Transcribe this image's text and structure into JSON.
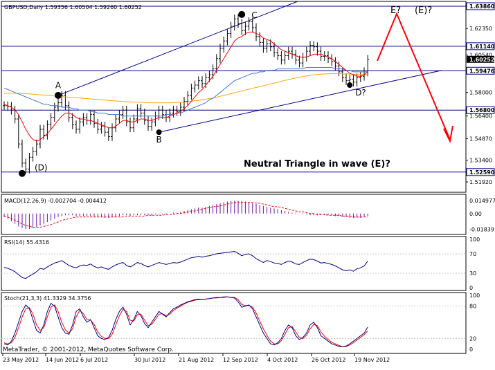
{
  "window": {
    "header": "GBPUSD,Daily  1.59356 1.60504 1.59260 1.60252",
    "footer": "MetaTrader, © 2001-2012, MetaQuotes Software Corp."
  },
  "colors": {
    "candle": "#000000",
    "ma_fast": "#ff0000",
    "ma_medium": "#3c78d8",
    "ma_slow": "#ffa500",
    "trendline": "#00008b",
    "hline": "#00008b",
    "arrow": "#ff0000",
    "macd_hist": "#6a0dad",
    "macd_signal": "#ff0000",
    "rsi": "#00008b",
    "stoch_main": "#00008b",
    "stoch_signal": "#ff0000",
    "label_bg": "#ffffff",
    "current_price_bg": "#000000"
  },
  "annotations": {
    "title": "Neutral Triangle in wave (E)?",
    "A": "A",
    "B": "B",
    "C": "C",
    "D": "D?",
    "D_prev": "(D)",
    "E": "E?",
    "E_big": "(E)?"
  },
  "chart_data": [
    {
      "type": "candlestick",
      "title": "GBPUSD,Daily",
      "ohlc_last": {
        "open": 1.59356,
        "high": 1.60504,
        "low": 1.5926,
        "close": 1.60252
      },
      "ylim": [
        1.515,
        1.64
      ],
      "x_labels": [
        "23 May 2012",
        "14 Jun 2012",
        "6 Jul 2012",
        "30 Jul 2012",
        "21 Aug 2012",
        "12 Sep 2012",
        "4 Oct 2012",
        "26 Oct 2012",
        "19 Nov 2012"
      ],
      "y_tick_labels": [
        "1.63860",
        "1.62350",
        "1.60540",
        "1.59476",
        "1.58000",
        "1.56400",
        "1.54870",
        "1.53400",
        "1.51920"
      ],
      "hlines": [
        "1.63860",
        "1.61140",
        "1.59476",
        "1.56800",
        "1.52590"
      ],
      "current_price": "1.60252",
      "closes": [
        1.571,
        1.5705,
        1.568,
        1.562,
        1.545,
        1.532,
        1.528,
        1.536,
        1.54,
        1.545,
        1.555,
        1.551,
        1.558,
        1.563,
        1.57,
        1.573,
        1.578,
        1.571,
        1.563,
        1.558,
        1.555,
        1.56,
        1.563,
        1.561,
        1.565,
        1.559,
        1.555,
        1.557,
        1.553,
        1.55,
        1.556,
        1.562,
        1.565,
        1.568,
        1.56,
        1.556,
        1.562,
        1.569,
        1.566,
        1.561,
        1.557,
        1.56,
        1.564,
        1.568,
        1.565,
        1.563,
        1.566,
        1.568,
        1.567,
        1.57,
        1.574,
        1.578,
        1.583,
        1.585,
        1.588,
        1.586,
        1.59,
        1.592,
        1.596,
        1.603,
        1.61,
        1.615,
        1.62,
        1.625,
        1.63,
        1.627,
        1.622,
        1.625,
        1.628,
        1.624,
        1.618,
        1.614,
        1.61,
        1.613,
        1.611,
        1.607,
        1.605,
        1.602,
        1.605,
        1.608,
        1.606,
        1.602,
        1.6,
        1.604,
        1.608,
        1.612,
        1.611,
        1.608,
        1.6045,
        1.605,
        1.603,
        1.601,
        1.598,
        1.594,
        1.59,
        1.588,
        1.589,
        1.587,
        1.59,
        1.591,
        1.594,
        1.6025
      ],
      "ma_fast": [
        1.572,
        1.571,
        1.57,
        1.568,
        1.565,
        1.56,
        1.555,
        1.551,
        1.548,
        1.547,
        1.548,
        1.55,
        1.552,
        1.555,
        1.558,
        1.561,
        1.564,
        1.566,
        1.566,
        1.565,
        1.563,
        1.562,
        1.562,
        1.561,
        1.561,
        1.56,
        1.559,
        1.558,
        1.557,
        1.556,
        1.556,
        1.557,
        1.559,
        1.561,
        1.561,
        1.56,
        1.56,
        1.561,
        1.562,
        1.562,
        1.561,
        1.561,
        1.562,
        1.563,
        1.563,
        1.563,
        1.564,
        1.565,
        1.566,
        1.567,
        1.569,
        1.571,
        1.574,
        1.577,
        1.58,
        1.582,
        1.585,
        1.588,
        1.591,
        1.595,
        1.599,
        1.603,
        1.607,
        1.611,
        1.615,
        1.617,
        1.618,
        1.62,
        1.621,
        1.621,
        1.62,
        1.619,
        1.617,
        1.616,
        1.615,
        1.613,
        1.611,
        1.609,
        1.608,
        1.607,
        1.606,
        1.605,
        1.604,
        1.604,
        1.604,
        1.605,
        1.606,
        1.606,
        1.606,
        1.605,
        1.604,
        1.603,
        1.601,
        1.599,
        1.597,
        1.595,
        1.593,
        1.592,
        1.591,
        1.591,
        1.592,
        1.594
      ],
      "ma_medium": [
        1.583,
        1.582,
        1.581,
        1.58,
        1.579,
        1.578,
        1.577,
        1.576,
        1.575,
        1.574,
        1.573,
        1.572,
        1.572,
        1.571,
        1.571,
        1.571,
        1.57,
        1.57,
        1.57,
        1.569,
        1.569,
        1.568,
        1.568,
        1.568,
        1.567,
        1.567,
        1.566,
        1.566,
        1.566,
        1.565,
        1.565,
        1.565,
        1.565,
        1.564,
        1.564,
        1.564,
        1.564,
        1.564,
        1.564,
        1.564,
        1.564,
        1.564,
        1.564,
        1.564,
        1.564,
        1.565,
        1.565,
        1.565,
        1.566,
        1.566,
        1.567,
        1.568,
        1.569,
        1.57,
        1.571,
        1.572,
        1.573,
        1.575,
        1.576,
        1.578,
        1.58,
        1.582,
        1.584,
        1.586,
        1.588,
        1.589,
        1.59,
        1.591,
        1.592,
        1.593,
        1.593,
        1.594,
        1.594,
        1.595,
        1.595,
        1.595,
        1.596,
        1.596,
        1.596,
        1.596,
        1.596,
        1.596,
        1.596,
        1.596,
        1.597,
        1.597,
        1.597,
        1.597,
        1.597,
        1.597,
        1.597,
        1.597,
        1.596,
        1.596,
        1.596,
        1.595,
        1.595,
        1.594,
        1.594,
        1.594,
        1.594,
        1.594
      ],
      "ma_slow": [
        1.5795,
        1.5795,
        1.5795,
        1.5795,
        1.5794,
        1.5793,
        1.5792,
        1.579,
        1.5788,
        1.5786,
        1.5784,
        1.5782,
        1.578,
        1.5778,
        1.5776,
        1.5774,
        1.5772,
        1.577,
        1.5768,
        1.5766,
        1.5764,
        1.5762,
        1.576,
        1.5758,
        1.5756,
        1.5754,
        1.5752,
        1.575,
        1.5748,
        1.5746,
        1.5744,
        1.5742,
        1.574,
        1.5738,
        1.5737,
        1.5736,
        1.5735,
        1.5734,
        1.5733,
        1.5732,
        1.5731,
        1.573,
        1.573,
        1.573,
        1.573,
        1.573,
        1.573,
        1.5731,
        1.5732,
        1.5733,
        1.5735,
        1.5737,
        1.574,
        1.5743,
        1.5746,
        1.575,
        1.5754,
        1.5758,
        1.5763,
        1.5768,
        1.5774,
        1.578,
        1.5786,
        1.5792,
        1.5798,
        1.5804,
        1.581,
        1.5816,
        1.5822,
        1.5828,
        1.5834,
        1.584,
        1.5846,
        1.5852,
        1.5858,
        1.5864,
        1.587,
        1.5876,
        1.5882,
        1.5888,
        1.5893,
        1.5898,
        1.5903,
        1.5908,
        1.5912,
        1.5916,
        1.592,
        1.5922,
        1.5924,
        1.5926,
        1.5927,
        1.5928,
        1.5928,
        1.5928,
        1.5927,
        1.5926,
        1.5925,
        1.5924,
        1.5923,
        1.5922,
        1.5921,
        1.592
      ]
    },
    {
      "type": "histogram",
      "title": "MACD(12,26,9) -0.002704 -0.004412",
      "y_tick_labels": [
        "0.014977",
        "0.00",
        "-0.01839"
      ],
      "ylim": [
        -0.022,
        0.02
      ],
      "values": [
        -0.004,
        -0.006,
        -0.009,
        -0.012,
        -0.015,
        -0.017,
        -0.018,
        -0.018,
        -0.017,
        -0.016,
        -0.014,
        -0.012,
        -0.01,
        -0.008,
        -0.006,
        -0.004,
        -0.003,
        -0.002,
        -0.002,
        -0.002,
        -0.003,
        -0.003,
        -0.003,
        -0.003,
        -0.003,
        -0.004,
        -0.004,
        -0.004,
        -0.005,
        -0.005,
        -0.004,
        -0.004,
        -0.003,
        -0.002,
        -0.002,
        -0.003,
        -0.002,
        -0.002,
        -0.002,
        -0.002,
        -0.002,
        -0.002,
        -0.001,
        -0.001,
        -0.001,
        -0.001,
        0.0,
        0.001,
        0.001,
        0.002,
        0.003,
        0.004,
        0.005,
        0.006,
        0.007,
        0.007,
        0.008,
        0.009,
        0.01,
        0.011,
        0.012,
        0.013,
        0.014,
        0.0145,
        0.015,
        0.015,
        0.0145,
        0.014,
        0.013,
        0.012,
        0.011,
        0.01,
        0.009,
        0.008,
        0.007,
        0.006,
        0.005,
        0.004,
        0.003,
        0.002,
        0.001,
        0.001,
        0.0,
        -0.001,
        -0.001,
        -0.002,
        -0.002,
        -0.002,
        -0.002,
        -0.002,
        -0.002,
        -0.002,
        -0.003,
        -0.003,
        -0.004,
        -0.004,
        -0.005,
        -0.005,
        -0.005,
        -0.005,
        -0.004,
        -0.003
      ],
      "signal": [
        -0.003,
        -0.004,
        -0.006,
        -0.008,
        -0.01,
        -0.012,
        -0.014,
        -0.015,
        -0.016,
        -0.016,
        -0.016,
        -0.015,
        -0.014,
        -0.013,
        -0.011,
        -0.01,
        -0.008,
        -0.007,
        -0.006,
        -0.005,
        -0.004,
        -0.004,
        -0.004,
        -0.004,
        -0.004,
        -0.004,
        -0.004,
        -0.004,
        -0.004,
        -0.004,
        -0.004,
        -0.004,
        -0.004,
        -0.004,
        -0.003,
        -0.003,
        -0.003,
        -0.003,
        -0.003,
        -0.003,
        -0.002,
        -0.002,
        -0.002,
        -0.002,
        -0.002,
        -0.001,
        -0.001,
        -0.001,
        0.0,
        0.0,
        0.001,
        0.002,
        0.003,
        0.003,
        0.004,
        0.005,
        0.006,
        0.007,
        0.008,
        0.008,
        0.009,
        0.01,
        0.011,
        0.012,
        0.013,
        0.013,
        0.013,
        0.013,
        0.013,
        0.013,
        0.012,
        0.012,
        0.011,
        0.01,
        0.009,
        0.008,
        0.008,
        0.007,
        0.006,
        0.005,
        0.004,
        0.003,
        0.002,
        0.002,
        0.001,
        0.0,
        0.0,
        -0.001,
        -0.001,
        -0.001,
        -0.002,
        -0.002,
        -0.002,
        -0.002,
        -0.003,
        -0.003,
        -0.003,
        -0.004,
        -0.004,
        -0.004,
        -0.004,
        -0.004
      ]
    },
    {
      "type": "line",
      "title": "RSI(14) 55.4316",
      "y_tick_labels": [
        "100",
        "70",
        "30",
        "0"
      ],
      "levels": [
        70,
        30
      ],
      "ylim": [
        0,
        100
      ],
      "values": [
        42,
        40,
        37,
        33,
        27,
        21,
        19,
        24,
        28,
        33,
        40,
        38,
        43,
        47,
        51,
        53,
        56,
        51,
        46,
        43,
        41,
        45,
        47,
        46,
        49,
        44,
        41,
        43,
        40,
        38,
        43,
        47,
        50,
        52,
        46,
        43,
        47,
        52,
        50,
        46,
        43,
        46,
        49,
        52,
        50,
        48,
        50,
        52,
        51,
        53,
        56,
        59,
        62,
        63,
        65,
        63,
        65,
        66,
        68,
        70,
        71,
        72,
        73,
        74,
        75,
        71,
        66,
        69,
        70,
        66,
        60,
        56,
        52,
        56,
        54,
        51,
        50,
        48,
        52,
        55,
        53,
        49,
        48,
        52,
        56,
        59,
        58,
        55,
        51,
        52,
        50,
        48,
        45,
        41,
        37,
        35,
        37,
        34,
        39,
        41,
        45,
        55
      ]
    },
    {
      "type": "line",
      "title": "Stoch(21,3,3) 41.3329 34.3756",
      "y_tick_labels": [
        "100",
        "80",
        "20",
        "0"
      ],
      "levels": [
        80,
        20
      ],
      "ylim": [
        0,
        100
      ],
      "values": [
        10,
        8,
        15,
        30,
        50,
        70,
        82,
        75,
        55,
        35,
        30,
        45,
        70,
        85,
        80,
        60,
        40,
        30,
        28,
        45,
        70,
        75,
        60,
        50,
        55,
        40,
        25,
        20,
        18,
        22,
        35,
        55,
        70,
        78,
        65,
        45,
        55,
        70,
        62,
        48,
        40,
        50,
        60,
        70,
        65,
        60,
        68,
        75,
        78,
        82,
        85,
        88,
        90,
        92,
        93,
        92,
        93,
        94,
        95,
        96,
        96,
        97,
        97,
        96,
        95,
        88,
        78,
        80,
        82,
        75,
        60,
        45,
        30,
        20,
        10,
        8,
        12,
        20,
        35,
        45,
        40,
        25,
        18,
        22,
        30,
        45,
        50,
        40,
        25,
        20,
        15,
        10,
        8,
        5,
        5,
        6,
        10,
        15,
        20,
        25,
        30,
        41
      ],
      "signal": [
        12,
        10,
        12,
        22,
        40,
        60,
        75,
        77,
        65,
        45,
        35,
        40,
        60,
        78,
        82,
        70,
        50,
        36,
        30,
        38,
        60,
        72,
        66,
        55,
        54,
        46,
        32,
        24,
        20,
        20,
        28,
        45,
        62,
        74,
        70,
        54,
        52,
        64,
        65,
        54,
        44,
        46,
        55,
        65,
        66,
        62,
        65,
        72,
        76,
        80,
        84,
        87,
        89,
        91,
        92,
        92,
        93,
        94,
        95,
        95,
        96,
        96,
        97,
        96,
        96,
        92,
        83,
        81,
        81,
        78,
        67,
        52,
        38,
        26,
        15,
        10,
        10,
        16,
        28,
        40,
        42,
        32,
        22,
        20,
        26,
        38,
        46,
        44,
        32,
        24,
        18,
        13,
        10,
        7,
        5,
        5,
        8,
        12,
        17,
        22,
        27,
        34
      ]
    }
  ]
}
